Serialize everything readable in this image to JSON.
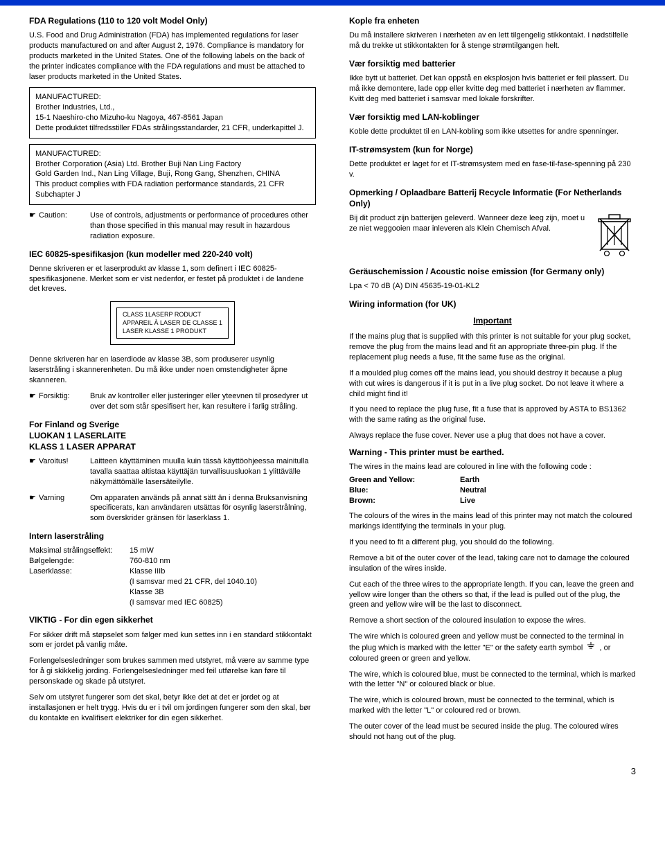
{
  "colors": {
    "top_bar": "#0033cc",
    "text": "#000000",
    "bg": "#ffffff"
  },
  "left": {
    "h1": "FDA Regulations (110 to 120 volt Model Only)",
    "p1": "U.S. Food and Drug Administration (FDA) has implemented regulations for laser products manufactured on and after August 2, 1976. Compliance is mandatory for products marketed in the United States. One of the following labels on the back of the printer indicates compliance with the FDA regulations and must be attached to laser products marketed in the United States.",
    "box1": "MANUFACTURED:\nBrother Industries, Ltd.,\n15-1 Naeshiro-cho Mizuho-ku Nagoya, 467-8561 Japan\nDette produktet tilfredsstiller FDAs strålingsstandarder, 21 CFR, underkapittel J.",
    "box2": "MANUFACTURED:\nBrother Corporation (Asia) Ltd. Brother Buji Nan Ling Factory\nGold Garden Ind., Nan Ling Village, Buji, Rong Gang, Shenzhen, CHINA\nThis product complies with FDA radiation performance standards, 21 CFR Subchapter J",
    "caution_label": "Caution:",
    "caution_text": "Use of controls, adjustments or performance of procedures other than those specified in this manual may result in hazardous radiation exposure.",
    "h2": "IEC 60825-spesifikasjon (kun modeller med 220-240 volt)",
    "p2": "Denne skriveren er et laserprodukt av klasse 1, som definert i IEC 60825-spesifikasjonene. Merket som er vist nedenfor, er festet på produktet i de landene det kreves.",
    "label_line1": "CLASS 1LASERP RODUCT",
    "label_line2": "APPAREIL À LASER DE CLASSE 1",
    "label_line3": "LASER KLASSE 1 PRODUKT",
    "p3": "Denne skriveren har en laserdiode av klasse 3B, som produserer usynlig laserstråling i skannerenheten. Du må ikke under noen omstendigheter åpne skanneren.",
    "forsiktig_label": "Forsiktig:",
    "forsiktig_text": "Bruk av kontroller eller justeringer eller yteevnen til prosedyrer ut over det som står spesifisert her, kan resultere i farlig stråling.",
    "h3a": "For Finland og Sverige",
    "h3b": "LUOKAN 1 LASERLAITE",
    "h3c": "KLASS 1 LASER APPARAT",
    "varoitus_label": "Varoitus!",
    "varoitus_text": "Laitteen käyttäminen muulla kuin tässä käyttöohjeessa mainitulla tavalla saattaa altistaa käyttäjän turvallisuusluokan 1 ylittävälle näkymättömälle lasersäteilylle.",
    "varning_label": "Varning",
    "varning_text": "Om apparaten används på annat sätt än i denna Bruksanvisning specificerats, kan användaren utsättas för osynlig laserstrålning, som överskrider gränsen för laserklass 1.",
    "h4": "Intern laserstråling",
    "spec": [
      {
        "k": "Maksimal strålingseffekt:",
        "v": "15 mW"
      },
      {
        "k": "Bølgelengde:",
        "v": "760-810 nm"
      },
      {
        "k": "Laserklasse:",
        "v": "Klasse IIIb"
      },
      {
        "k": "",
        "v": "(I samsvar med 21 CFR, del 1040.10)"
      },
      {
        "k": "",
        "v": "Klasse 3B"
      },
      {
        "k": "",
        "v": "(I samsvar med IEC 60825)"
      }
    ],
    "h5": "VIKTIG - For din egen sikkerhet",
    "p5a": "For sikker drift må støpselet som følger med kun settes inn i en standard stikkontakt som er jordet på vanlig måte.",
    "p5b": "Forlengelsesledninger som brukes sammen med utstyret, må være av samme type for å gi skikkelig jording. Forlengelsesledninger med feil utførelse kan føre til personskade og skade på utstyret.",
    "p5c": "Selv om utstyret fungerer som det skal, betyr ikke det at det er jordet og at installasjonen er helt trygg. Hvis du er i tvil om jordingen fungerer som den skal, bør du kontakte en kvalifisert elektriker for din egen sikkerhet."
  },
  "right": {
    "h1": "Kople fra enheten",
    "p1": "Du må installere skriveren i nærheten av en lett tilgengelig stikkontakt. I nødstilfelle må du trekke ut stikkontakten for å stenge strømtilgangen helt.",
    "h2": "Vær forsiktig med batterier",
    "p2": "Ikke bytt ut batteriet. Det kan oppstå en eksplosjon hvis batteriet er feil plassert. Du må ikke demontere, lade opp eller kvitte deg med batteriet i nærheten av flammer.  Kvitt deg med batteriet i samsvar med lokale forskrifter.",
    "h3": "Vær forsiktig med LAN-koblinger",
    "p3": "Koble dette produktet til en LAN-kobling som ikke utsettes for andre spenninger.",
    "h4": "IT-strømsystem (kun for Norge)",
    "p4": "Dette produktet er laget for et IT-strømsystem med en fase-til-fase-spenning på  230 v.",
    "h5": "Opmerking / Oplaadbare Batterij Recycle Informatie (For Netherlands Only)",
    "p5": "Bij dit product zijn batterijen geleverd.  Wanneer deze leeg zijn, moet u ze niet weggooien maar inleveren als Klein Chemisch Afval.",
    "h6": "Geräuschemission / Acoustic noise emission (for Germany only)",
    "p6": "Lpa < 70 dB (A) DIN 45635-19-01-KL2",
    "h7": "Wiring information (for UK)",
    "important": "Important",
    "p7a": "If the mains plug that is supplied with this printer is not suitable for your plug socket, remove the plug from the mains lead and fit an appropriate three-pin plug. If the replacement plug needs a fuse, fit the same fuse as the original.",
    "p7b": "If a moulded plug comes off the mains lead, you should destroy it because a plug with cut wires is dangerous if it is put in a live plug socket.  Do not leave it where a child might find it!",
    "p7c": "If you need to replace the plug fuse, fit a fuse that is approved by ASTA to BS1362 with the same rating as the original fuse.",
    "p7d": "Always replace the fuse cover. Never use a plug that does not have a cover.",
    "h8": "Warning - This printer must be earthed.",
    "p8": "The wires in the mains lead are coloured in line with the following code :",
    "wires": [
      {
        "k": "Green and Yellow:",
        "v": "Earth"
      },
      {
        "k": "Blue:",
        "v": "Neutral"
      },
      {
        "k": "Brown:",
        "v": "Live"
      }
    ],
    "p9a": "The colours of the wires in the mains lead of this printer may not match the coloured markings identifying the terminals in your plug.",
    "p9b": "If you need to fit a different plug, you should do the following.",
    "p9c": "Remove a bit of the outer cover of the lead, taking care not to damage the coloured insulation of the wires inside.",
    "p9d": "Cut each of the three wires to the appropriate length. If you can, leave the green and yellow wire longer than the others so that, if the lead is pulled out of the plug, the green and yellow wire will be the last to disconnect.",
    "p9e": "Remove a short section of the coloured insulation to expose the wires.",
    "p9f_a": "The wire which is coloured green and yellow must be connected to the terminal in the plug which is marked with the letter \"E\" or the safety earth symbol ",
    "p9f_b": " , or coloured green or green and yellow.",
    "p9g": "The wire, which is coloured blue, must be connected to the terminal, which is marked with the letter \"N\" or coloured black or blue.",
    "p9h": "The wire, which is coloured brown, must be connected to the terminal, which is marked with the letter \"L\" or coloured red or brown.",
    "p9i": "The outer cover of the lead must be secured inside the plug. The coloured wires should not hang out of the plug."
  },
  "page_number": "3"
}
